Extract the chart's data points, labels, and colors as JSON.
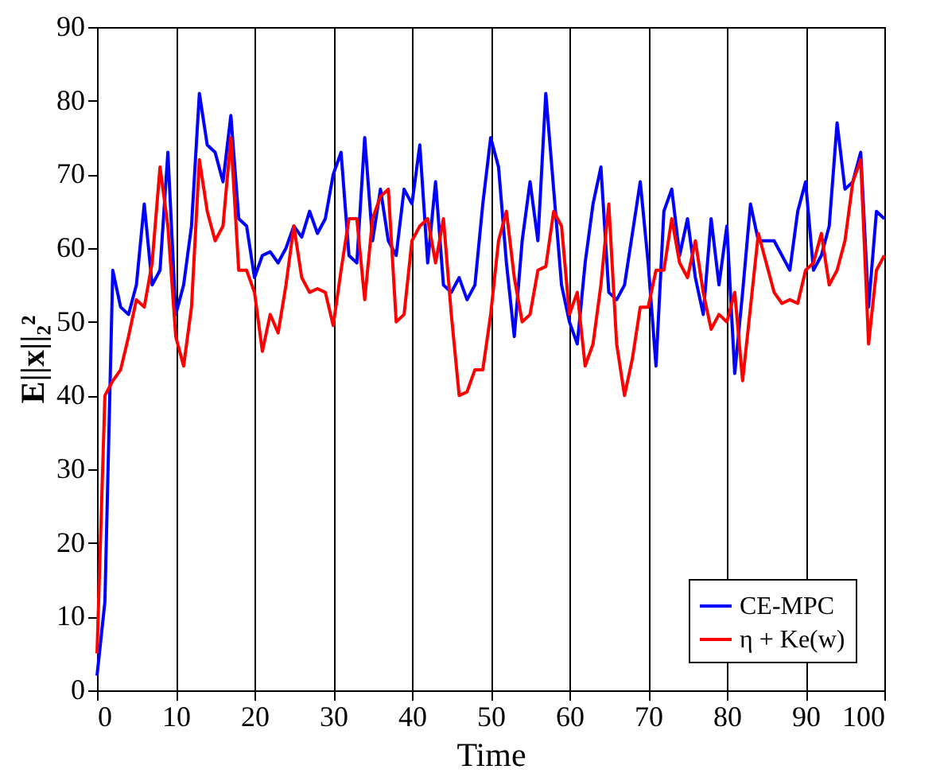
{
  "chart_data": {
    "type": "line",
    "xlabel": "Time",
    "ylabel": "E||x||₂²",
    "x": [
      0,
      1,
      2,
      3,
      4,
      5,
      6,
      7,
      8,
      9,
      10,
      11,
      12,
      13,
      14,
      15,
      16,
      17,
      18,
      19,
      20,
      21,
      22,
      23,
      24,
      25,
      26,
      27,
      28,
      29,
      30,
      31,
      32,
      33,
      34,
      35,
      36,
      37,
      38,
      39,
      40,
      41,
      42,
      43,
      44,
      45,
      46,
      47,
      48,
      49,
      50,
      51,
      52,
      53,
      54,
      55,
      56,
      57,
      58,
      59,
      60,
      61,
      62,
      63,
      64,
      65,
      66,
      67,
      68,
      69,
      70,
      71,
      72,
      73,
      74,
      75,
      76,
      77,
      78,
      79,
      80,
      81,
      82,
      83,
      84,
      85,
      86,
      87,
      88,
      89,
      90,
      91,
      92,
      93,
      94,
      95,
      96,
      97,
      98,
      99,
      100
    ],
    "series": [
      {
        "name": "CE-MPC",
        "color": "#0000ff",
        "values": [
          2,
          12,
          57,
          52,
          51,
          55,
          66,
          55,
          57,
          73,
          51,
          55,
          63,
          81,
          74,
          73,
          69,
          78,
          64,
          63,
          56,
          59,
          59.5,
          58,
          60,
          63,
          61.5,
          65,
          62,
          64,
          70,
          73,
          59,
          58,
          75,
          61,
          68,
          61,
          59,
          68,
          66,
          74,
          58,
          69,
          55,
          54,
          56,
          53,
          55,
          66,
          75,
          71,
          58,
          48,
          61,
          69,
          61,
          81,
          68,
          55,
          50,
          47,
          58,
          66,
          71,
          54,
          53,
          55,
          62,
          69,
          58,
          44,
          65,
          68,
          59,
          64,
          56,
          51,
          64,
          55,
          63,
          43,
          54,
          66,
          61,
          61,
          61,
          59,
          57,
          65,
          69,
          57,
          59,
          63,
          77,
          68,
          69,
          73,
          52,
          65,
          64
        ]
      },
      {
        "name": "η + Ke(w)",
        "color": "#ff0000",
        "values": [
          5,
          40,
          42,
          43.5,
          48,
          53,
          52,
          58,
          71,
          63,
          48,
          44,
          52,
          72,
          65,
          61,
          63,
          75,
          57,
          57,
          54,
          46,
          51,
          48.5,
          55,
          63,
          56,
          54,
          54.5,
          54,
          49.5,
          57,
          64,
          64,
          53,
          64,
          67,
          68,
          50,
          51,
          61,
          63,
          64,
          58,
          64,
          51,
          40,
          40.5,
          43.5,
          43.5,
          51,
          61,
          65,
          56,
          50,
          51,
          57,
          57.5,
          65,
          63,
          51,
          54,
          44,
          47,
          55,
          66,
          47,
          40,
          45,
          52,
          52,
          57,
          57,
          64,
          58,
          56,
          61,
          54,
          49,
          51,
          50,
          54,
          42,
          52,
          62,
          58,
          54,
          52.5,
          53,
          52.5,
          57,
          58,
          62,
          55,
          57,
          61,
          69,
          72,
          47,
          57,
          59
        ]
      }
    ],
    "xlim": [
      0,
      100
    ],
    "xticks": [
      0,
      10,
      20,
      30,
      40,
      50,
      60,
      70,
      80,
      90,
      100
    ],
    "ylim": [
      0,
      90
    ],
    "yticks": [
      0,
      10,
      20,
      30,
      40,
      50,
      60,
      70,
      80,
      90
    ],
    "grid": "x",
    "legend": "bottom right"
  }
}
